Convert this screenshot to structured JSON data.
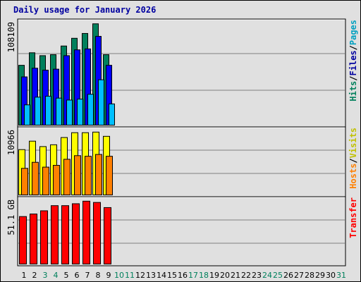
{
  "title": "Daily usage for January 2026",
  "chart_data": {
    "type": "bar",
    "title": "Daily usage for January 2026",
    "days": [
      "1",
      "2",
      "3",
      "4",
      "5",
      "6",
      "7",
      "8",
      "9",
      "10",
      "11",
      "12",
      "13",
      "14",
      "15",
      "16",
      "17",
      "18",
      "19",
      "20",
      "21",
      "22",
      "23",
      "24",
      "25",
      "26",
      "27",
      "28",
      "29",
      "30",
      "31"
    ],
    "day_colors": [
      "#000000",
      "#000000",
      "#00805c",
      "#00805c",
      "#000000",
      "#000000",
      "#000000",
      "#000000",
      "#000000",
      "#00805c",
      "#00805c",
      "#000000",
      "#000000",
      "#000000",
      "#000000",
      "#000000",
      "#00805c",
      "#00805c",
      "#000000",
      "#000000",
      "#000000",
      "#000000",
      "#000000",
      "#00805c",
      "#00805c",
      "#000000",
      "#000000",
      "#000000",
      "#000000",
      "#000000",
      "#00805c"
    ],
    "panels": [
      {
        "max_label": "108109",
        "max_value": 108109,
        "right_label": [
          {
            "text": "Hits",
            "color": "#00805c"
          },
          {
            "text": "/",
            "color": "#000000"
          },
          {
            "text": "Files",
            "color": "#0000a0"
          },
          {
            "text": "/",
            "color": "#000000"
          },
          {
            "text": "Pages",
            "color": "#00a0c0"
          }
        ],
        "series": [
          {
            "name": "Hits",
            "color": "#00805c",
            "values": [
              62000,
              75000,
              72000,
              73000,
              82000,
              90000,
              95000,
              105000,
              73000
            ]
          },
          {
            "name": "Files",
            "color": "#0000ff",
            "values": [
              50000,
              59000,
              57000,
              58000,
              72000,
              78000,
              79000,
              92000,
              62000
            ]
          },
          {
            "name": "Pages",
            "color": "#00bfff",
            "values": [
              21000,
              29000,
              30000,
              28000,
              26000,
              27000,
              32000,
              47000,
              22000
            ]
          }
        ]
      },
      {
        "max_label": "10966",
        "max_value": 10966,
        "right_label": [
          {
            "text": "Hosts",
            "color": "#ff8000"
          },
          {
            "text": "/",
            "color": "#000000"
          },
          {
            "text": "Visits",
            "color": "#c0c000"
          }
        ],
        "series": [
          {
            "name": "Visits",
            "color": "#ffff00",
            "values": [
              7500,
              8900,
              8000,
              8300,
              9500,
              10300,
              10300,
              10400,
              9700
            ]
          },
          {
            "name": "Hosts",
            "color": "#ff8000",
            "values": [
              4400,
              5400,
              4600,
              4900,
              5900,
              6500,
              6400,
              6700,
              6400
            ]
          }
        ]
      },
      {
        "max_label": "51.1 GB",
        "max_value": 51.1,
        "right_label": [
          {
            "text": "Transfer",
            "color": "#ff0000"
          }
        ],
        "series": [
          {
            "name": "Transfer",
            "color": "#ff0000",
            "values": [
              37000,
              39000,
              41500,
              45500,
              45500,
              47000,
              49000,
              48000,
              44000
            ]
          }
        ]
      }
    ]
  }
}
